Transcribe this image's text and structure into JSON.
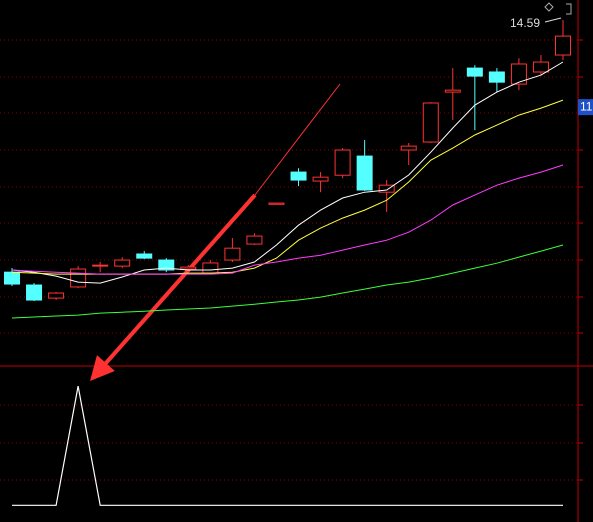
{
  "chart_data": [
    {
      "type": "candlestick",
      "open": [
        4.19,
        3.66,
        3.12,
        3.58,
        4.44,
        4.44,
        4.94,
        4.69,
        4.32,
        4.15,
        4.69,
        5.35,
        6.99,
        8.32,
        7.95,
        8.19,
        8.98,
        7.49,
        9.23,
        9.56,
        11.62,
        12.61,
        12.45,
        11.95,
        12.45,
        13.15
      ],
      "high": [
        4.36,
        3.74,
        3.37,
        4.44,
        4.61,
        4.81,
        5.06,
        4.77,
        4.48,
        4.69,
        5.6,
        5.8,
        7.04,
        8.48,
        8.32,
        9.31,
        9.64,
        7.99,
        9.52,
        11.21,
        12.61,
        12.73,
        12.61,
        13.02,
        13.15,
        14.59
      ],
      "low": [
        3.62,
        3.0,
        3.04,
        3.53,
        4.19,
        4.36,
        4.73,
        4.19,
        4.19,
        4.11,
        4.61,
        5.31,
        6.99,
        7.74,
        7.49,
        8.07,
        7.54,
        6.67,
        8.61,
        9.52,
        10.47,
        10.05,
        11.62,
        11.7,
        12.32,
        12.94
      ],
      "close": [
        3.7,
        3.04,
        3.33,
        4.32,
        4.48,
        4.69,
        4.77,
        4.28,
        4.4,
        4.57,
        5.18,
        5.68,
        7.04,
        7.99,
        8.11,
        9.23,
        7.58,
        7.78,
        9.39,
        11.17,
        11.7,
        12.28,
        12.03,
        12.78,
        12.86,
        13.93
      ],
      "up_color": "#ff3232",
      "down_color": "#54ffff",
      "series": [
        {
          "color": "#ffffff",
          "values": [
            4.28,
            4.19,
            4.03,
            3.78,
            3.74,
            3.99,
            4.28,
            4.36,
            4.28,
            4.28,
            4.36,
            4.61,
            5.31,
            6.13,
            6.75,
            7.25,
            7.49,
            7.58,
            8.2,
            9.14,
            10.14,
            11.08,
            11.62,
            12.03,
            12.32,
            12.86
          ]
        },
        {
          "color": "#ffff3c",
          "values": [
            4.19,
            4.15,
            4.11,
            4.11,
            4.11,
            4.11,
            4.11,
            4.11,
            4.15,
            4.15,
            4.19,
            4.36,
            4.77,
            5.51,
            6.01,
            6.42,
            6.75,
            7.16,
            7.91,
            8.81,
            9.31,
            9.85,
            10.26,
            10.67,
            10.96,
            11.29
          ]
        },
        {
          "color": "#ff3cff",
          "values": [
            4.28,
            4.23,
            4.19,
            4.15,
            4.11,
            4.11,
            4.11,
            4.11,
            4.11,
            4.11,
            4.15,
            4.48,
            4.61,
            4.77,
            4.89,
            5.1,
            5.31,
            5.51,
            5.84,
            6.34,
            6.96,
            7.37,
            7.78,
            8.07,
            8.32,
            8.61
          ]
        },
        {
          "color": "#3cff3c",
          "values": [
            2.3,
            2.34,
            2.38,
            2.42,
            2.5,
            2.54,
            2.58,
            2.63,
            2.67,
            2.71,
            2.79,
            2.87,
            2.96,
            3.04,
            3.16,
            3.33,
            3.49,
            3.66,
            3.78,
            3.95,
            4.15,
            4.36,
            4.56,
            4.81,
            5.06,
            5.31
          ]
        }
      ],
      "current_marker": 11,
      "ylim": [
        0.36,
        15.42
      ]
    },
    {
      "type": "line",
      "color": "#ffffff",
      "values": [
        0,
        0,
        0,
        1,
        0,
        0,
        0,
        0,
        0,
        0,
        0,
        0,
        0,
        0,
        0,
        0,
        0,
        0,
        0,
        0,
        0,
        0,
        0,
        0,
        0,
        0
      ],
      "ylim": [
        -0.14,
        1.16
      ]
    }
  ]
}
